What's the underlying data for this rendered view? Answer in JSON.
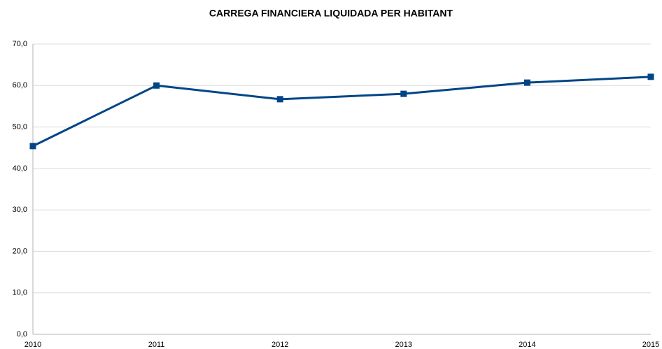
{
  "chart_data": {
    "type": "line",
    "title": "CARREGA FINANCIERA LIQUIDADA PER HABITANT",
    "categories": [
      "2010",
      "2011",
      "2012",
      "2013",
      "2014",
      "2015"
    ],
    "series": [
      {
        "name": null,
        "color": "#004586",
        "values": [
          45.4,
          60.0,
          56.7,
          58.0,
          60.7,
          62.1
        ]
      }
    ],
    "ylim": [
      0,
      70
    ],
    "yticks": [
      {
        "value": 0,
        "label": "0,0"
      },
      {
        "value": 10,
        "label": "10,0"
      },
      {
        "value": 20,
        "label": "20,0"
      },
      {
        "value": 30,
        "label": "30,0"
      },
      {
        "value": 40,
        "label": "40,0"
      },
      {
        "value": 50,
        "label": "50,0"
      },
      {
        "value": 60,
        "label": "60,0"
      },
      {
        "value": 70,
        "label": "70,0"
      }
    ],
    "grid": true
  }
}
